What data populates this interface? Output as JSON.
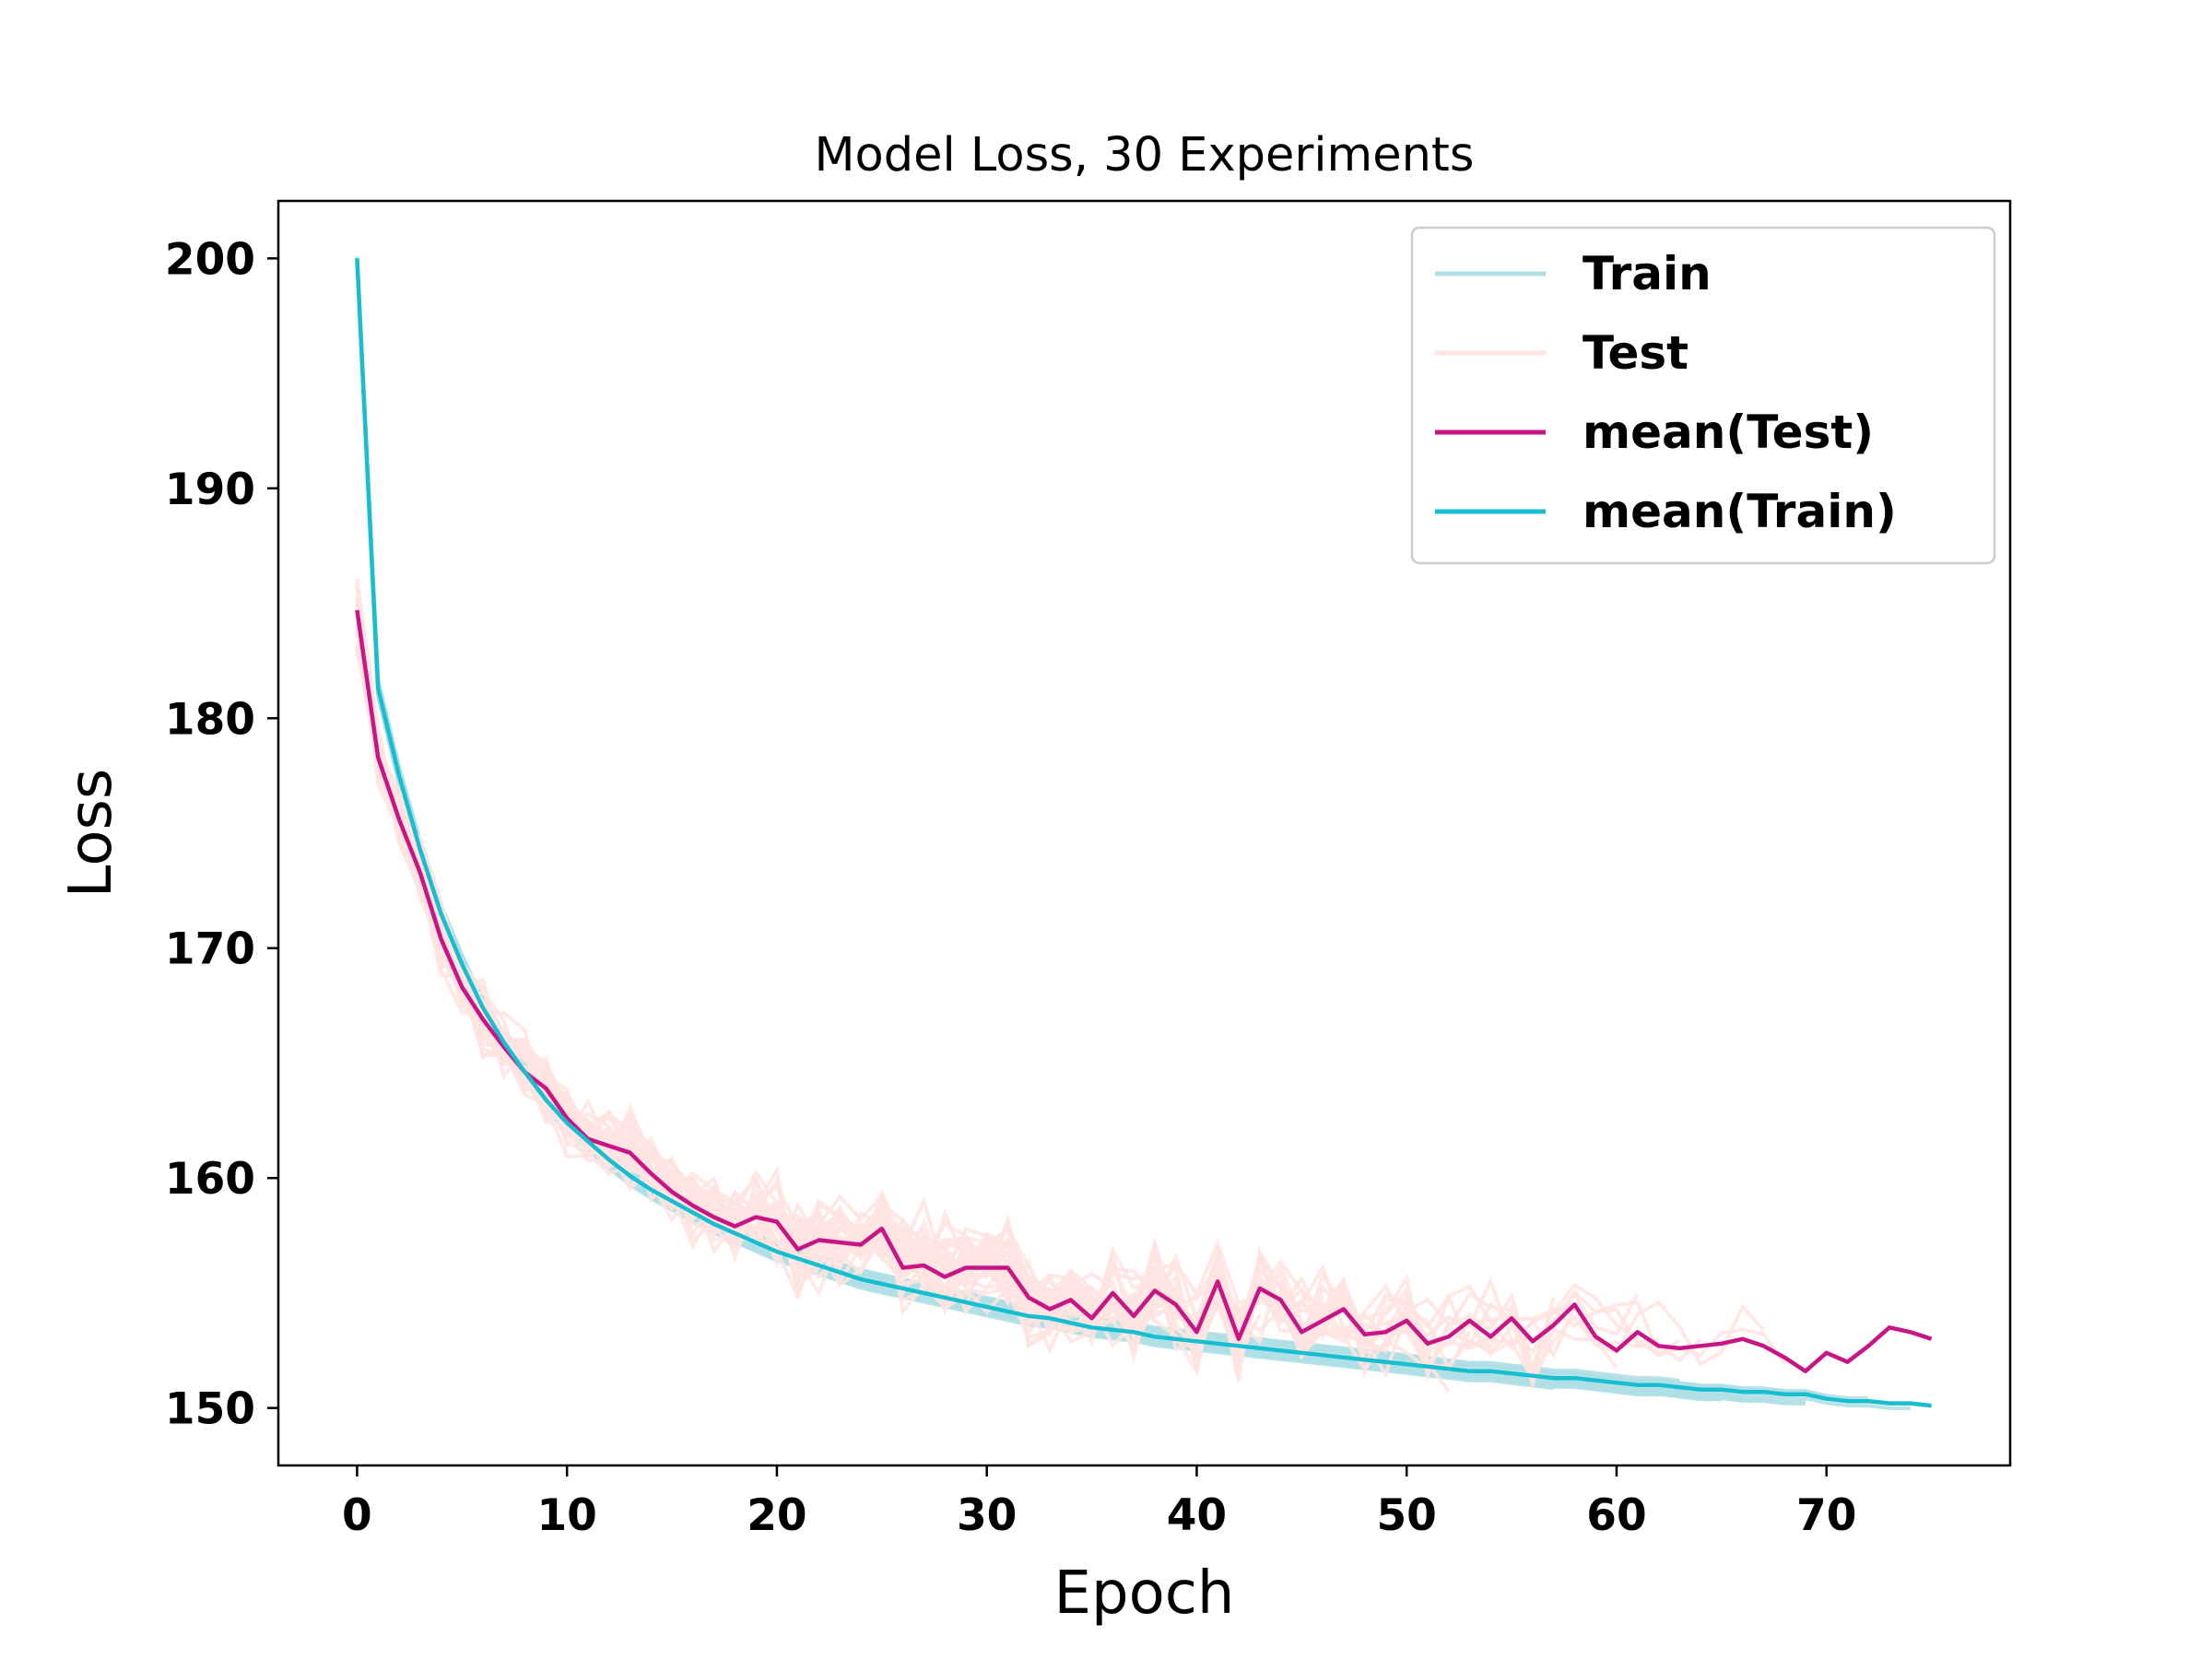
{
  "chart_data": {
    "type": "line",
    "title": "Model Loss, 30 Experiments",
    "xlabel": "Epoch",
    "ylabel": "Loss",
    "xlim": [
      -3.75,
      78.75
    ],
    "ylim": [
      147.5,
      202.5
    ],
    "xticks": [
      0,
      10,
      20,
      30,
      40,
      50,
      60,
      70
    ],
    "yticks": [
      150,
      160,
      170,
      180,
      190,
      200
    ],
    "grid": false,
    "legend_position": "top-right",
    "colors": {
      "train": "#b0e0e6",
      "test": "#ffe4e1",
      "mean_test": "#c71585",
      "mean_train": "#17becf"
    },
    "legend": [
      {
        "label": "Train",
        "color": "#b0e0e6"
      },
      {
        "label": "Test",
        "color": "#ffe4e1"
      },
      {
        "label": "mean(Test)",
        "color": "#c71585"
      },
      {
        "label": "mean(Train)",
        "color": "#17becf"
      }
    ],
    "series": [
      {
        "name": "mean(Train)",
        "x": [
          0,
          1,
          2,
          3,
          4,
          5,
          6,
          7,
          8,
          9,
          10,
          11,
          12,
          13,
          14,
          15,
          16,
          17,
          18,
          19,
          20,
          21,
          22,
          23,
          24,
          25,
          26,
          27,
          28,
          29,
          30,
          31,
          32,
          33,
          34,
          35,
          36,
          37,
          38,
          39,
          40,
          41,
          42,
          43,
          44,
          45,
          46,
          47,
          48,
          49,
          50,
          51,
          52,
          53,
          54,
          55,
          56,
          57,
          58,
          59,
          60,
          61,
          62,
          63,
          64,
          65,
          66,
          67,
          68,
          69,
          70,
          71,
          72,
          73,
          74,
          75
        ],
        "y": [
          200.0,
          181.3,
          177.5,
          174.3,
          171.5,
          169.3,
          167.4,
          165.9,
          164.6,
          163.4,
          162.4,
          161.6,
          160.8,
          160.1,
          159.5,
          159.0,
          158.5,
          158.0,
          157.6,
          157.2,
          156.8,
          156.5,
          156.2,
          155.9,
          155.6,
          155.4,
          155.2,
          155.0,
          154.8,
          154.6,
          154.4,
          154.2,
          154.0,
          153.9,
          153.7,
          153.5,
          153.4,
          153.3,
          153.1,
          153.0,
          152.9,
          152.8,
          152.7,
          152.6,
          152.5,
          152.4,
          152.3,
          152.2,
          152.1,
          152.0,
          151.9,
          151.8,
          151.7,
          151.6,
          151.6,
          151.5,
          151.4,
          151.3,
          151.3,
          151.2,
          151.1,
          151.0,
          151.0,
          150.9,
          150.8,
          150.8,
          150.7,
          150.7,
          150.6,
          150.6,
          150.4,
          150.3,
          150.3,
          150.2,
          150.2,
          150.1
        ]
      },
      {
        "name": "mean(Test)",
        "x": [
          0,
          1,
          2,
          3,
          4,
          5,
          6,
          7,
          8,
          9,
          10,
          11,
          12,
          13,
          14,
          15,
          16,
          17,
          18,
          19,
          20,
          21,
          22,
          23,
          24,
          25,
          26,
          27,
          28,
          29,
          30,
          31,
          32,
          33,
          34,
          35,
          36,
          37,
          38,
          39,
          40,
          41,
          42,
          43,
          44,
          45,
          46,
          47,
          48,
          49,
          50,
          51,
          52,
          53,
          54,
          55,
          56,
          57,
          58,
          59,
          60,
          61,
          62,
          63,
          64,
          65,
          66,
          67,
          68,
          69,
          70,
          71,
          72,
          73,
          74,
          75
        ],
        "y": [
          184.7,
          178.3,
          175.6,
          173.3,
          170.4,
          168.3,
          166.9,
          165.7,
          164.6,
          163.9,
          162.6,
          161.7,
          161.4,
          161.1,
          160.2,
          159.4,
          158.8,
          158.3,
          157.9,
          158.3,
          158.1,
          156.9,
          157.3,
          157.2,
          157.1,
          157.8,
          156.1,
          156.2,
          155.7,
          156.1,
          156.1,
          156.1,
          154.8,
          154.3,
          154.7,
          153.9,
          155.0,
          154.0,
          155.1,
          154.5,
          153.3,
          155.5,
          153.0,
          155.2,
          154.7,
          153.3,
          153.8,
          154.3,
          153.2,
          153.3,
          153.8,
          152.8,
          153.1,
          153.8,
          153.1,
          153.9,
          152.9,
          153.6,
          154.5,
          153.1,
          152.5,
          153.3,
          152.7,
          152.6,
          152.7,
          152.8,
          153.0,
          152.7,
          152.2,
          151.6,
          152.4,
          152.0,
          152.7,
          153.5,
          153.3,
          153.0
        ]
      }
    ]
  }
}
